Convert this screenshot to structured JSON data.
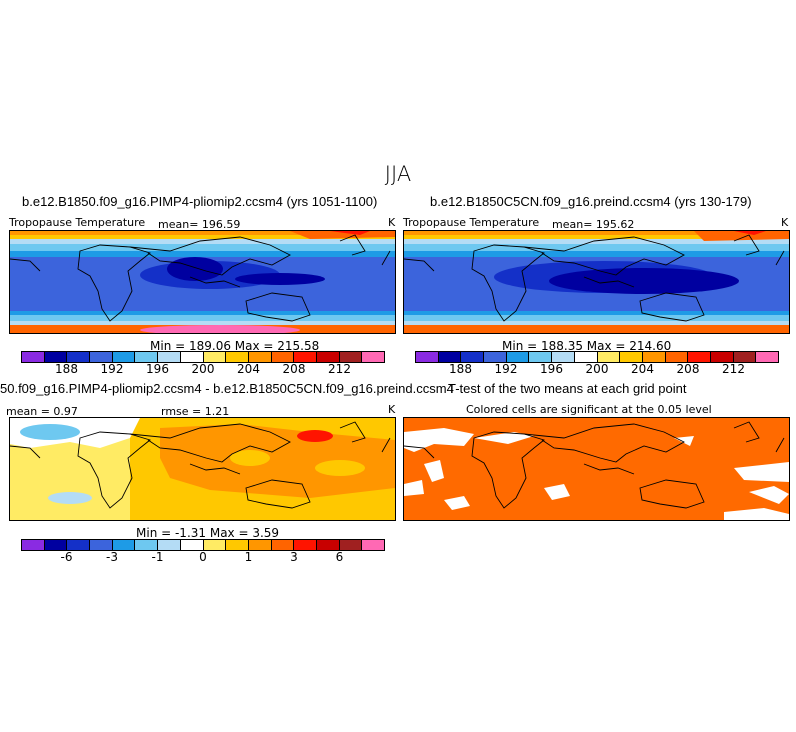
{
  "season": "JJA",
  "panels": {
    "p1": {
      "title": "b.e12.B1850.f09_g16.PIMP4-pliomip2.ccsm4 (yrs 1051-1100)",
      "variable": "Tropopause Temperature",
      "mean": "mean= 196.59",
      "units": "K",
      "minmax": "Min = 189.06  Max = 215.58"
    },
    "p2": {
      "title": "b.e12.B1850C5CN.f09_g16.preind.ccsm4 (yrs 130-179)",
      "variable": "Tropopause Temperature",
      "mean": "mean= 195.62",
      "units": "K",
      "minmax": "Min = 188.35  Max = 214.60"
    },
    "p3": {
      "title": "50.f09_g16.PIMP4-pliomip2.ccsm4 - b.e12.B1850C5CN.f09_g16.preind.ccsm4",
      "mean": "mean =   0.97",
      "rmse": "rmse =   1.21",
      "units": "K",
      "minmax": "Min =  -1.31  Max =   3.59"
    },
    "p4": {
      "title": "T-test of the two means at each grid point",
      "subtitle": "Colored cells are significant at the 0.05 level"
    }
  },
  "colorbars": {
    "temp": {
      "colors": [
        "#8a2be2",
        "#0000a0",
        "#1430c8",
        "#3c64dc",
        "#1e9be6",
        "#6ec8f0",
        "#b4dcf5",
        "#ffffff",
        "#ffeb64",
        "#ffc800",
        "#ff9600",
        "#ff6400",
        "#ff1400",
        "#c80000",
        "#a02020",
        "#ff69b4"
      ],
      "ticks": [
        "188",
        "192",
        "196",
        "200",
        "204",
        "208",
        "212"
      ]
    },
    "diff": {
      "colors": [
        "#8a2be2",
        "#0000a0",
        "#1430c8",
        "#3c64dc",
        "#1e9be6",
        "#6ec8f0",
        "#b4dcf5",
        "#ffffff",
        "#ffeb64",
        "#ffc800",
        "#ff9600",
        "#ff6400",
        "#ff1400",
        "#c80000",
        "#a02020",
        "#ff69b4"
      ],
      "ticks": [
        "-6",
        "-3",
        "-1",
        "0",
        "1",
        "3",
        "6"
      ]
    }
  },
  "chart_data": [
    {
      "type": "heatmap",
      "title": "b.e12.B1850.f09_g16.PIMP4-pliomip2.ccsm4 (yrs 1051-1100)",
      "variable": "Tropopause Temperature",
      "units": "K",
      "mean": 196.59,
      "min": 189.06,
      "max": 215.58,
      "colorbar_ticks": [
        188,
        192,
        196,
        200,
        204,
        208,
        212
      ]
    },
    {
      "type": "heatmap",
      "title": "b.e12.B1850C5CN.f09_g16.preind.ccsm4 (yrs 130-179)",
      "variable": "Tropopause Temperature",
      "units": "K",
      "mean": 195.62,
      "min": 188.35,
      "max": 214.6,
      "colorbar_ticks": [
        188,
        192,
        196,
        200,
        204,
        208,
        212
      ]
    },
    {
      "type": "heatmap",
      "title": "50.f09_g16.PIMP4-pliomip2.ccsm4 - b.e12.B1850C5CN.f09_g16.preind.ccsm4",
      "units": "K",
      "mean": 0.97,
      "rmse": 1.21,
      "min": -1.31,
      "max": 3.59,
      "colorbar_ticks": [
        -6,
        -3,
        -1,
        0,
        1,
        3,
        6
      ]
    },
    {
      "type": "heatmap",
      "title": "T-test of the two means at each grid point",
      "subtitle": "Colored cells are significant at the 0.05 level",
      "significant_color": "#ff6a00"
    }
  ]
}
